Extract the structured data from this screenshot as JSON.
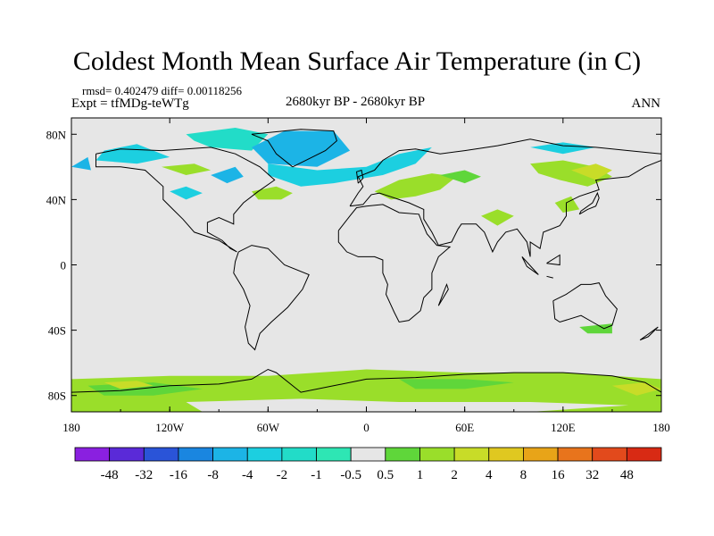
{
  "chart_data": {
    "type": "heatmap",
    "title": "Coldest Month Mean Surface Air Temperature (in C)",
    "stats_text": "rmsd= 0.402479 diff= 0.00118256",
    "experiment_text": "Expt = tfMDg-teWTg",
    "period_text": "2680kyr BP - 2680kyr BP",
    "season_text": "ANN",
    "x_ticks": [
      "180",
      "120W",
      "60W",
      "0",
      "60E",
      "120E",
      "180"
    ],
    "y_ticks": [
      "80N",
      "40N",
      "0",
      "40S",
      "80S"
    ],
    "colorbar": {
      "labels": [
        "-48",
        "-32",
        "-16",
        "-8",
        "-4",
        "-2",
        "-1",
        "-0.5",
        "0.5",
        "1",
        "2",
        "4",
        "8",
        "16",
        "32",
        "48"
      ],
      "colors": [
        "#8a20e0",
        "#5a2ad8",
        "#2a54d8",
        "#1a86e0",
        "#1cb4e6",
        "#1ccfe0",
        "#22dcc8",
        "#2ee6b4",
        "#e6e6e6",
        "#5fd63a",
        "#9ade2a",
        "#c8dc28",
        "#e0c820",
        "#e8a418",
        "#e8741c",
        "#e24a1c",
        "#d82a14"
      ]
    },
    "background_color": "#e6e6e6",
    "regions": [
      {
        "color": "#1ccfe0",
        "points": [
          [
            -160,
            70
          ],
          [
            -140,
            74
          ],
          [
            -120,
            66
          ],
          [
            -140,
            62
          ],
          [
            -165,
            64
          ]
        ]
      },
      {
        "color": "#22dcc8",
        "points": [
          [
            -110,
            80
          ],
          [
            -80,
            84
          ],
          [
            -60,
            80
          ],
          [
            -70,
            70
          ],
          [
            -95,
            72
          ],
          [
            -105,
            76
          ]
        ]
      },
      {
        "color": "#1cb4e6",
        "points": [
          [
            -70,
            72
          ],
          [
            -50,
            82
          ],
          [
            -20,
            82
          ],
          [
            -10,
            70
          ],
          [
            -30,
            60
          ],
          [
            -60,
            62
          ]
        ]
      },
      {
        "color": "#1ccfe0",
        "points": [
          [
            -60,
            62
          ],
          [
            -30,
            58
          ],
          [
            0,
            60
          ],
          [
            20,
            68
          ],
          [
            40,
            72
          ],
          [
            30,
            62
          ],
          [
            10,
            55
          ],
          [
            -20,
            50
          ],
          [
            -40,
            48
          ],
          [
            -60,
            55
          ]
        ]
      },
      {
        "color": "#9ade2a",
        "points": [
          [
            -70,
            45
          ],
          [
            -55,
            48
          ],
          [
            -45,
            44
          ],
          [
            -52,
            40
          ],
          [
            -66,
            40
          ]
        ]
      },
      {
        "color": "#1ccfe0",
        "points": [
          [
            -120,
            45
          ],
          [
            -110,
            48
          ],
          [
            -100,
            44
          ],
          [
            -110,
            40
          ]
        ]
      },
      {
        "color": "#9ade2a",
        "points": [
          [
            -125,
            60
          ],
          [
            -105,
            62
          ],
          [
            -95,
            58
          ],
          [
            -110,
            55
          ]
        ]
      },
      {
        "color": "#1cb4e6",
        "points": [
          [
            -95,
            55
          ],
          [
            -80,
            60
          ],
          [
            -75,
            54
          ],
          [
            -85,
            50
          ]
        ]
      },
      {
        "color": "#9ade2a",
        "points": [
          [
            5,
            45
          ],
          [
            20,
            52
          ],
          [
            40,
            56
          ],
          [
            55,
            54
          ],
          [
            45,
            46
          ],
          [
            30,
            42
          ],
          [
            15,
            40
          ]
        ]
      },
      {
        "color": "#5fd63a",
        "points": [
          [
            45,
            55
          ],
          [
            60,
            58
          ],
          [
            70,
            54
          ],
          [
            60,
            50
          ]
        ]
      },
      {
        "color": "#9ade2a",
        "points": [
          [
            100,
            62
          ],
          [
            120,
            64
          ],
          [
            140,
            60
          ],
          [
            150,
            54
          ],
          [
            135,
            48
          ],
          [
            118,
            52
          ],
          [
            105,
            56
          ]
        ]
      },
      {
        "color": "#c8dc28",
        "points": [
          [
            125,
            58
          ],
          [
            140,
            62
          ],
          [
            150,
            58
          ],
          [
            140,
            52
          ]
        ]
      },
      {
        "color": "#1ccfe0",
        "points": [
          [
            100,
            72
          ],
          [
            120,
            75
          ],
          [
            140,
            72
          ],
          [
            120,
            68
          ]
        ]
      },
      {
        "color": "#1cb4e6",
        "points": [
          [
            -180,
            60
          ],
          [
            -170,
            66
          ],
          [
            -168,
            58
          ]
        ]
      },
      {
        "color": "#9ade2a",
        "points": [
          [
            70,
            30
          ],
          [
            80,
            34
          ],
          [
            90,
            30
          ],
          [
            80,
            24
          ]
        ]
      },
      {
        "color": "#9ade2a",
        "points": [
          [
            115,
            38
          ],
          [
            125,
            42
          ],
          [
            130,
            34
          ],
          [
            120,
            32
          ]
        ]
      },
      {
        "color": "#9ade2a",
        "points": [
          [
            -180,
            -70
          ],
          [
            -120,
            -68
          ],
          [
            -60,
            -68
          ],
          [
            0,
            -64
          ],
          [
            60,
            -66
          ],
          [
            120,
            -66
          ],
          [
            180,
            -70
          ],
          [
            180,
            -90
          ],
          [
            -180,
            -90
          ]
        ]
      },
      {
        "color": "#5fd63a",
        "points": [
          [
            -170,
            -74
          ],
          [
            -130,
            -72
          ],
          [
            -100,
            -76
          ],
          [
            -130,
            -80
          ],
          [
            -160,
            -80
          ]
        ]
      },
      {
        "color": "#c8dc28",
        "points": [
          [
            -160,
            -72
          ],
          [
            -140,
            -71
          ],
          [
            -130,
            -74
          ],
          [
            -150,
            -76
          ]
        ]
      },
      {
        "color": "#5fd63a",
        "points": [
          [
            20,
            -70
          ],
          [
            60,
            -70
          ],
          [
            90,
            -72
          ],
          [
            60,
            -76
          ],
          [
            30,
            -76
          ]
        ]
      },
      {
        "color": "#c8dc28",
        "points": [
          [
            150,
            -74
          ],
          [
            170,
            -72
          ],
          [
            180,
            -76
          ],
          [
            165,
            -80
          ]
        ]
      },
      {
        "color": "#5fd63a",
        "points": [
          [
            130,
            -38
          ],
          [
            150,
            -36
          ],
          [
            150,
            -42
          ],
          [
            135,
            -42
          ]
        ]
      },
      {
        "color": "#e6e6e6",
        "points": [
          [
            -110,
            -84
          ],
          [
            -40,
            -82
          ],
          [
            20,
            -84
          ],
          [
            100,
            -84
          ],
          [
            160,
            -86
          ],
          [
            100,
            -90
          ],
          [
            -100,
            -90
          ]
        ]
      }
    ],
    "grid": false,
    "xlabel": "",
    "ylabel": ""
  }
}
